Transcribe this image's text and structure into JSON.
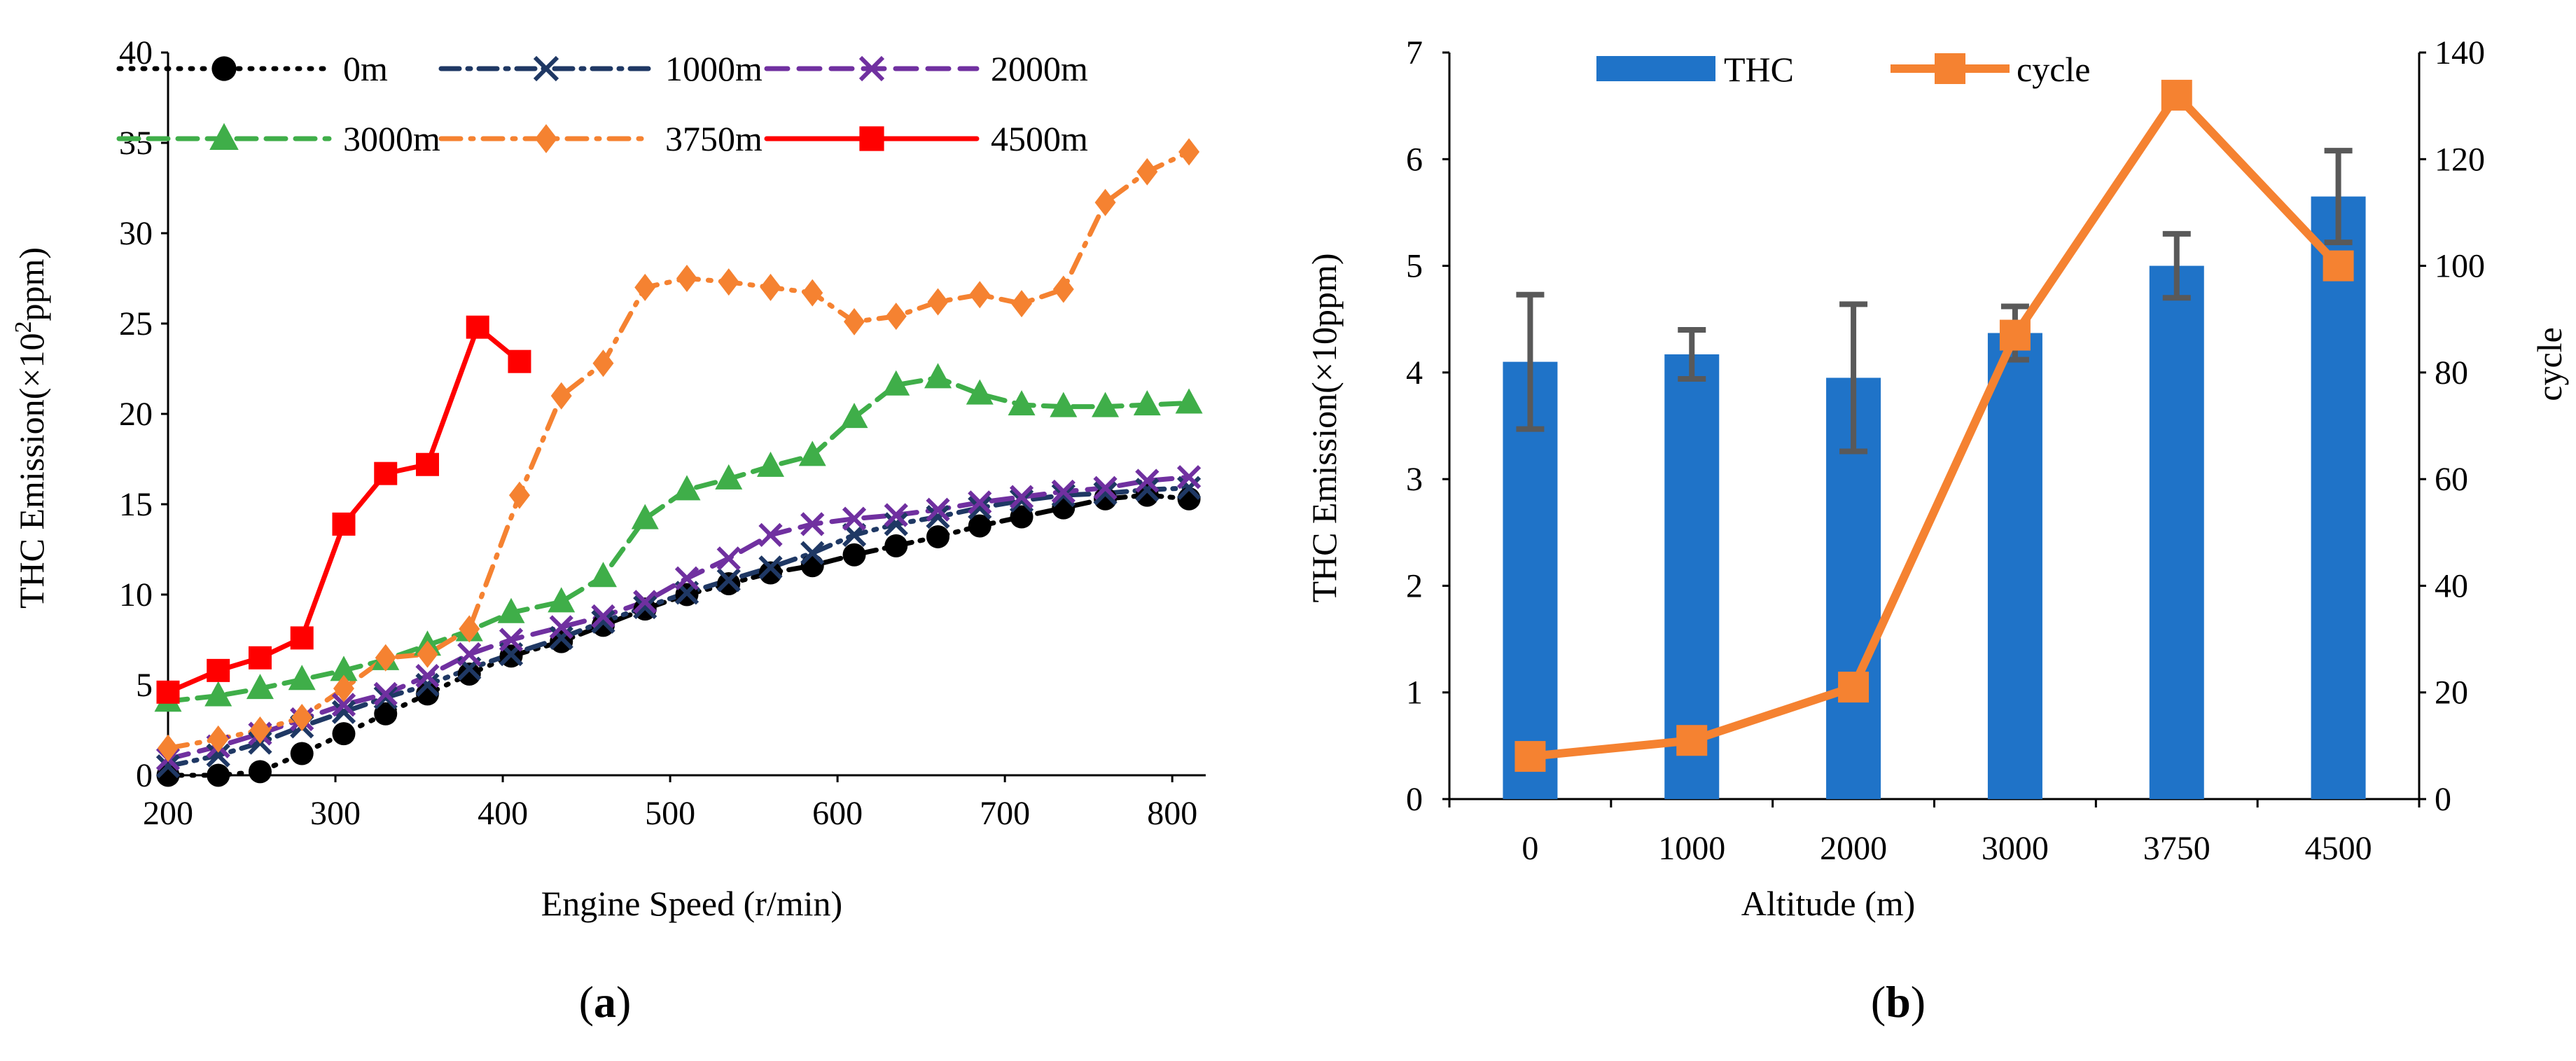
{
  "chart_data": [
    {
      "panel": "a",
      "type": "line",
      "panel_label": "a",
      "xlabel": "Engine Speed (r/min)",
      "ylabel_prefix": "THC Emission(×10",
      "ylabel_sup": "2",
      "ylabel_suffix": "ppm)",
      "xlim": [
        200,
        820
      ],
      "ylim": [
        0,
        40
      ],
      "xticks": [
        200,
        300,
        400,
        500,
        600,
        700,
        800
      ],
      "yticks": [
        0,
        5,
        10,
        15,
        20,
        25,
        30,
        35,
        40
      ],
      "grid": false,
      "legend_position": "top",
      "series": [
        {
          "name": "0m",
          "color": "#000000",
          "marker": "circle",
          "dash": "3 14",
          "x": [
            200,
            230,
            255,
            280,
            305,
            330,
            355,
            380,
            405
          ],
          "y": [
            0,
            0,
            0.2,
            1.2,
            2.3,
            3.4,
            4.5,
            5.6,
            6.6
          ],
          "x2": [
            405,
            435,
            460,
            485,
            510,
            535,
            560,
            585,
            610,
            635,
            660,
            685,
            710,
            735,
            760,
            785,
            810
          ],
          "y2": [
            6.6,
            7.4,
            8.3,
            9.2,
            10.0,
            10.6,
            11.2,
            11.6,
            12.2,
            12.7,
            13.2,
            13.8,
            14.3,
            14.8,
            15.3,
            15.5,
            15.3
          ]
        },
        {
          "name": "1000m",
          "color": "#1f3864",
          "marker": "x",
          "dash": "26 12 4 12",
          "x": [
            200,
            230,
            255,
            280,
            305,
            330,
            355,
            380,
            405,
            435,
            460,
            485,
            510,
            535,
            560,
            585,
            610,
            635,
            660,
            685,
            710,
            735,
            760,
            785,
            810
          ],
          "y": [
            0.5,
            1.1,
            1.8,
            2.7,
            3.5,
            4.3,
            5.0,
            5.9,
            6.7,
            7.6,
            8.5,
            9.3,
            10.1,
            10.8,
            11.5,
            12.3,
            13.3,
            13.9,
            14.3,
            14.8,
            15.2,
            15.5,
            15.6,
            15.8,
            15.9
          ]
        },
        {
          "name": "2000m",
          "color": "#7030a0",
          "marker": "x",
          "dash": "30 16",
          "x": [
            200,
            230,
            255,
            280,
            305,
            330,
            355,
            380,
            405,
            435,
            460,
            485,
            510,
            535,
            560,
            585,
            610,
            635,
            660,
            685,
            710,
            735,
            760,
            785,
            810
          ],
          "y": [
            0.9,
            1.6,
            2.3,
            3.1,
            3.9,
            4.5,
            5.5,
            6.7,
            7.5,
            8.2,
            8.8,
            9.6,
            10.9,
            12.0,
            13.3,
            13.9,
            14.2,
            14.4,
            14.7,
            15.1,
            15.4,
            15.7,
            15.9,
            16.3,
            16.5
          ]
        },
        {
          "name": "3000m",
          "color": "#3fae49",
          "marker": "triangle",
          "dash": "28 14",
          "x": [
            200,
            230,
            255,
            280,
            305,
            330,
            355,
            380,
            405,
            435,
            460,
            485,
            510,
            535,
            560,
            585,
            610,
            635,
            660,
            685,
            710,
            735,
            760,
            785,
            810
          ],
          "y": [
            4.1,
            4.4,
            4.8,
            5.3,
            5.8,
            6.4,
            7.2,
            8.0,
            9.0,
            9.6,
            11.0,
            14.2,
            15.8,
            16.4,
            17.1,
            17.7,
            19.8,
            21.6,
            22.0,
            21.1,
            20.5,
            20.4,
            20.4,
            20.5,
            20.6
          ]
        },
        {
          "name": "3750m",
          "color": "#f58231",
          "marker": "diamond",
          "dash": "28 14 4 14",
          "x": [
            200,
            230,
            255,
            280,
            305,
            330,
            355,
            380,
            410,
            435,
            460,
            485,
            510,
            535,
            560,
            585,
            610,
            635,
            660,
            685,
            710,
            735,
            760,
            785,
            810
          ],
          "y": [
            1.5,
            2.0,
            2.5,
            3.2,
            4.8,
            6.5,
            6.7,
            8.1,
            15.5,
            21.0,
            22.8,
            27.0,
            27.5,
            27.3,
            27.0,
            26.7,
            25.1,
            25.4,
            26.2,
            26.6,
            26.1,
            26.9,
            31.7,
            33.4,
            34.5
          ]
        },
        {
          "name": "4500m",
          "color": "#ff0000",
          "marker": "square",
          "dash": "",
          "x": [
            200,
            230,
            255,
            280,
            305,
            330,
            355,
            385,
            410
          ],
          "y": [
            4.6,
            5.8,
            6.5,
            7.6,
            13.9,
            16.7,
            17.2,
            24.8,
            22.9
          ]
        }
      ]
    },
    {
      "panel": "b",
      "type": "bar",
      "panel_label": "b",
      "xlabel": "Altitude (m)",
      "ylabel": "THC Emission(×10ppm)",
      "y2label": "cycle",
      "categories": [
        "0",
        "1000",
        "2000",
        "3000",
        "3750",
        "4500"
      ],
      "ylim": [
        0,
        7
      ],
      "yticks": [
        0,
        1,
        2,
        3,
        4,
        5,
        6,
        7
      ],
      "y2lim": [
        0,
        140
      ],
      "y2ticks": [
        0,
        20,
        40,
        60,
        80,
        100,
        120,
        140
      ],
      "grid": false,
      "legend_position": "top",
      "series": [
        {
          "name": "THC",
          "type": "bar",
          "axis": "left",
          "color": "#1f73c8",
          "values": [
            4.1,
            4.17,
            3.95,
            4.37,
            5.0,
            5.65
          ],
          "errors": [
            0.63,
            0.23,
            0.69,
            0.25,
            0.3,
            0.43
          ]
        },
        {
          "name": "cycle",
          "type": "line",
          "axis": "right",
          "color": "#f58231",
          "marker": "square",
          "values": [
            8,
            11,
            21,
            87,
            132,
            100
          ]
        }
      ]
    }
  ]
}
